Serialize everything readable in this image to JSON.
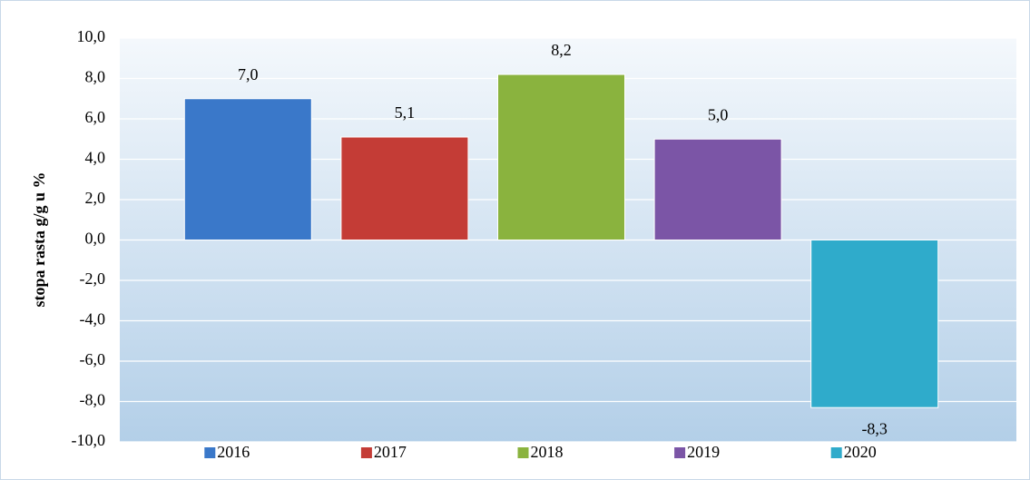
{
  "chart_data": {
    "type": "bar",
    "y_label": "stopa rasta g/g u %",
    "categories": [
      "2016",
      "2017",
      "2018",
      "2019",
      "2020"
    ],
    "values": [
      7.0,
      5.1,
      8.2,
      5.0,
      -8.3
    ],
    "value_labels": [
      "7,0",
      "5,1",
      "8,2",
      "5,0",
      "-8,3"
    ],
    "colors": [
      "#3a78c9",
      "#c43c36",
      "#8ab33e",
      "#7b55a6",
      "#2fabcb"
    ],
    "ylim": [
      -10,
      10
    ],
    "yticks": [
      {
        "value": -10,
        "label": "-10,0"
      },
      {
        "value": -8,
        "label": "-8,0"
      },
      {
        "value": -6,
        "label": "-6,0"
      },
      {
        "value": -4,
        "label": "-4,0"
      },
      {
        "value": -2,
        "label": "-2,0"
      },
      {
        "value": 0,
        "label": "0,0"
      },
      {
        "value": 2,
        "label": "2,0"
      },
      {
        "value": 4,
        "label": "4,0"
      },
      {
        "value": 6,
        "label": "6,0"
      },
      {
        "value": 8,
        "label": "8,0"
      },
      {
        "value": 10,
        "label": "10,0"
      }
    ],
    "grid": true,
    "legend": "bottom"
  }
}
